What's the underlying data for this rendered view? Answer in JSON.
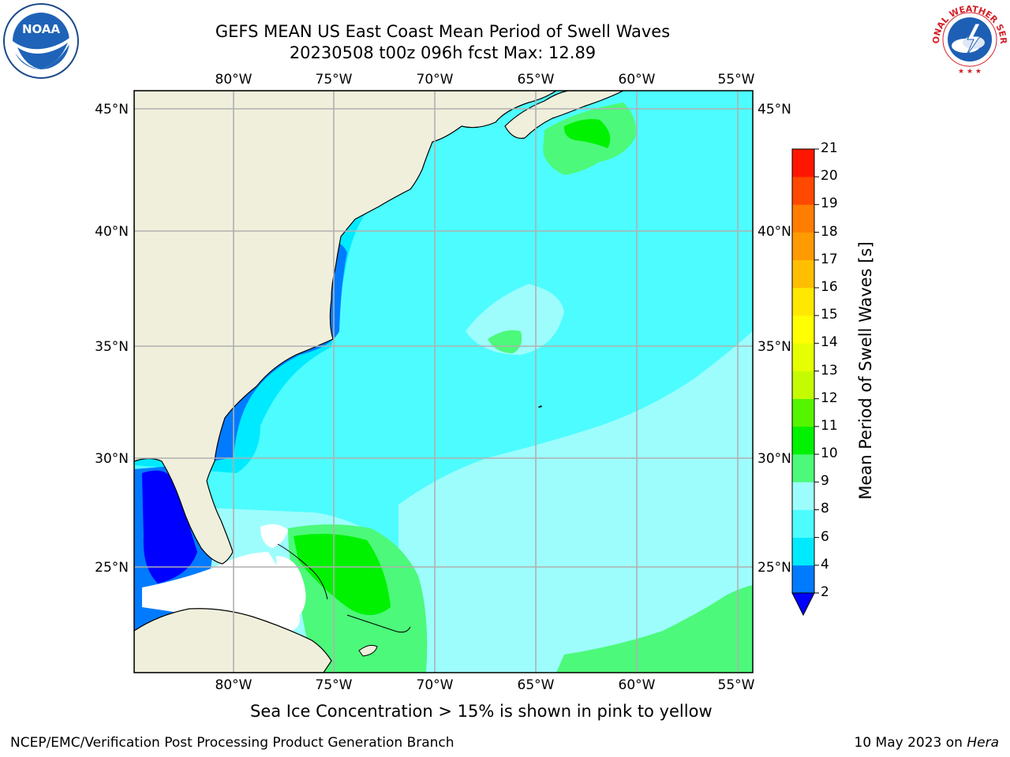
{
  "title_line1": "GEFS MEAN US East Coast Mean Period of Swell Waves",
  "title_line2": "20230508 t00z 096h fcst   Max: 12.89",
  "logos": {
    "left": "NOAA",
    "right_seal": "NATIONAL WEATHER SERVICE"
  },
  "map": {
    "lon_labels": [
      "80°W",
      "75°W",
      "70°W",
      "65°W",
      "60°W",
      "55°W"
    ],
    "lat_labels": [
      "45°N",
      "40°N",
      "35°N",
      "30°N",
      "25°N"
    ],
    "colors": {
      "land": "#efefdc",
      "grid": "#b0b0b0"
    }
  },
  "colorbar": {
    "title": "Mean Period of Swell Waves [s]",
    "tick_labels": [
      "2",
      "4",
      "6",
      "8",
      "9",
      "10",
      "11",
      "12",
      "13",
      "14",
      "15",
      "16",
      "17",
      "18",
      "19",
      "20",
      "21"
    ],
    "bins": [
      {
        "from": 2,
        "to": 4,
        "color": "#007bff"
      },
      {
        "from": 4,
        "to": 6,
        "color": "#00eaff"
      },
      {
        "from": 6,
        "to": 8,
        "color": "#4dfcff"
      },
      {
        "from": 8,
        "to": 9,
        "color": "#9dfdfd"
      },
      {
        "from": 9,
        "to": 10,
        "color": "#4cf97a"
      },
      {
        "from": 10,
        "to": 11,
        "color": "#00f200"
      },
      {
        "from": 11,
        "to": 12,
        "color": "#55f500"
      },
      {
        "from": 12,
        "to": 13,
        "color": "#c5fb00"
      },
      {
        "from": 13,
        "to": 14,
        "color": "#e6ff00"
      },
      {
        "from": 14,
        "to": 15,
        "color": "#ffff00"
      },
      {
        "from": 15,
        "to": 16,
        "color": "#ffe800"
      },
      {
        "from": 16,
        "to": 17,
        "color": "#ffbf00"
      },
      {
        "from": 17,
        "to": 18,
        "color": "#ff9a00"
      },
      {
        "from": 18,
        "to": 19,
        "color": "#ff7d00"
      },
      {
        "from": 19,
        "to": 20,
        "color": "#ff4800"
      },
      {
        "from": 20,
        "to": 21,
        "color": "#ff1600"
      }
    ],
    "under_color": "#0000ff"
  },
  "subtitle": "Sea Ice Concentration > 15% is shown in pink to yellow",
  "footer_left": "NCEP/EMC/Verification Post Processing Product Generation Branch",
  "footer_date": "10 May 2023 on ",
  "footer_host": "Hera"
}
